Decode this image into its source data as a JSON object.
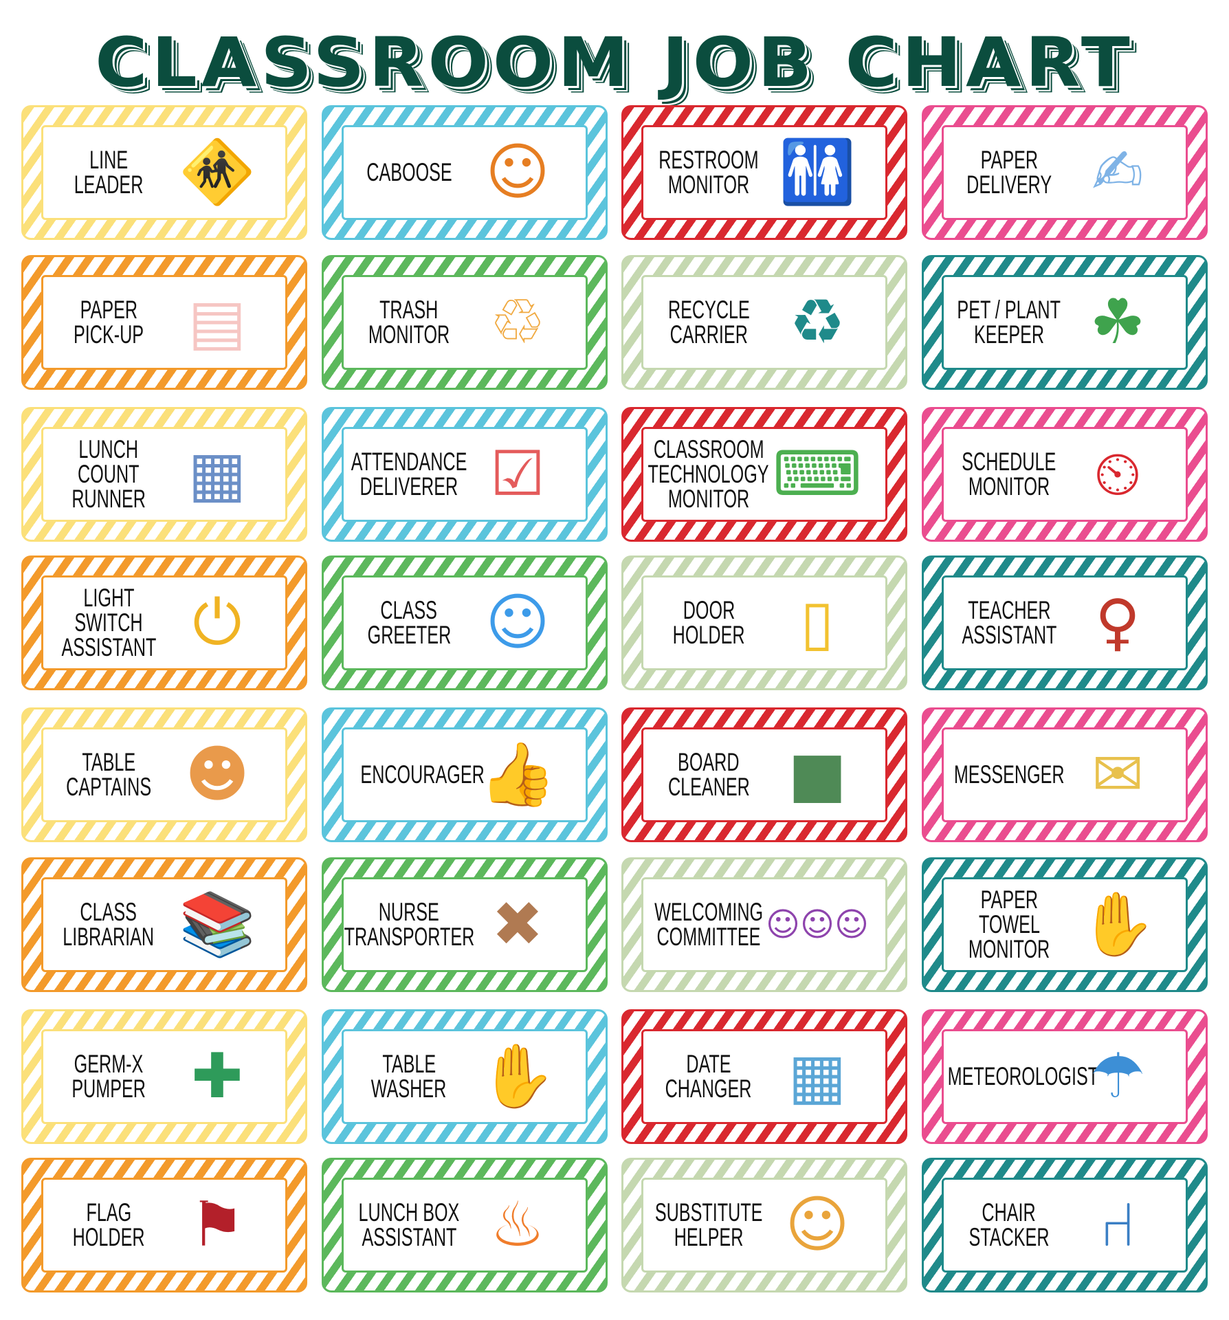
{
  "title": "CLASSROOM JOB CHART",
  "colors": {
    "title": "#0b4d3e",
    "yellow": "#fbe07a",
    "orange": "#f39a2b",
    "blue": "#5bc4dc",
    "green": "#5cb85c",
    "red": "#d9282f",
    "sage": "#c5d8b0",
    "pink": "#ea4d8f",
    "teal": "#1f8a8a"
  },
  "jobs": [
    {
      "lines": [
        "LINE",
        "LEADER"
      ],
      "color": "yellow",
      "icon": "children-line-icon",
      "glyph": "🚸",
      "tint": "#c77dba"
    },
    {
      "lines": [
        "CABOOSE"
      ],
      "color": "blue",
      "icon": "teacher-children-icon",
      "glyph": "☺",
      "tint": "#e67e22"
    },
    {
      "lines": [
        "RESTROOM",
        "MONITOR"
      ],
      "color": "red",
      "icon": "restroom-icon",
      "glyph": "🚻",
      "tint": "#0b4d3e"
    },
    {
      "lines": [
        "PAPER",
        "DELIVERY"
      ],
      "color": "pink",
      "icon": "paper-icon",
      "glyph": "✍",
      "tint": "#7fb3e6"
    },
    {
      "lines": [
        "PAPER",
        "PICK-UP"
      ],
      "color": "orange",
      "icon": "papers-icon",
      "glyph": "▤",
      "tint": "#f6c6c3"
    },
    {
      "lines": [
        "TRASH",
        "MONITOR"
      ],
      "color": "green",
      "icon": "trash-can-icon",
      "glyph": "♲",
      "tint": "#f0a940"
    },
    {
      "lines": [
        "RECYCLE",
        "CARRIER"
      ],
      "color": "sage",
      "icon": "recycle-bins-icon",
      "glyph": "♻",
      "tint": "#1f8a8a"
    },
    {
      "lines": [
        "PET / PLANT",
        "KEEPER"
      ],
      "color": "teal",
      "icon": "plant-icon",
      "glyph": "☘",
      "tint": "#3fa34d"
    },
    {
      "lines": [
        "LUNCH",
        "COUNT",
        "RUNNER"
      ],
      "color": "yellow",
      "icon": "lunch-tray-icon",
      "glyph": "▦",
      "tint": "#6b8fc7"
    },
    {
      "lines": [
        "ATTENDANCE",
        "DELIVERER"
      ],
      "color": "blue",
      "icon": "checklist-icon",
      "glyph": "☑",
      "tint": "#e45b5b"
    },
    {
      "lines": [
        "CLASSROOM",
        "TECHNOLOGY",
        "MONITOR"
      ],
      "color": "red",
      "icon": "laptop-icon",
      "glyph": "⌨",
      "tint": "#4caf50"
    },
    {
      "lines": [
        "SCHEDULE",
        "MONITOR"
      ],
      "color": "pink",
      "icon": "clock-icon",
      "glyph": "⏲",
      "tint": "#d9282f"
    },
    {
      "lines": [
        "LIGHT",
        "SWITCH",
        "ASSISTANT"
      ],
      "color": "orange",
      "icon": "light-switch-icon",
      "glyph": "⏻",
      "tint": "#f0b323"
    },
    {
      "lines": [
        "CLASS",
        "GREETER"
      ],
      "color": "green",
      "icon": "children-waving-icon",
      "glyph": "☺",
      "tint": "#3d9be9"
    },
    {
      "lines": [
        "DOOR",
        "HOLDER"
      ],
      "color": "sage",
      "icon": "door-icon",
      "glyph": "▯",
      "tint": "#f2c230"
    },
    {
      "lines": [
        "TEACHER",
        "ASSISTANT"
      ],
      "color": "teal",
      "icon": "teacher-icon",
      "glyph": "♀",
      "tint": "#c0392b"
    },
    {
      "lines": [
        "TABLE",
        "CAPTAINS"
      ],
      "color": "yellow",
      "icon": "children-table-icon",
      "glyph": "☻",
      "tint": "#e99a4b"
    },
    {
      "lines": [
        "ENCOURAGER"
      ],
      "color": "blue",
      "icon": "thumbs-up-icon",
      "glyph": "👍",
      "tint": "#f5c842"
    },
    {
      "lines": [
        "BOARD",
        "CLEANER"
      ],
      "color": "red",
      "icon": "chalkboard-icon",
      "glyph": "■",
      "tint": "#4f8a56"
    },
    {
      "lines": [
        "MESSENGER"
      ],
      "color": "pink",
      "icon": "envelope-icon",
      "glyph": "✉",
      "tint": "#e8c14d"
    },
    {
      "lines": [
        "CLASS",
        "LIBRARIAN"
      ],
      "color": "orange",
      "icon": "books-icon",
      "glyph": "📚",
      "tint": "#3fb0c9"
    },
    {
      "lines": [
        "NURSE",
        "TRANSPORTER"
      ],
      "color": "green",
      "icon": "bandage-icon",
      "glyph": "✖",
      "tint": "#b07a52"
    },
    {
      "lines": [
        "WELCOMING",
        "COMMITTEE"
      ],
      "color": "sage",
      "icon": "welcome-children-icon",
      "glyph": "☺☺☺",
      "tint": "#8e44ad"
    },
    {
      "lines": [
        "PAPER",
        "TOWEL",
        "MONITOR"
      ],
      "color": "teal",
      "icon": "hands-washing-icon",
      "glyph": "✋",
      "tint": "#f3b48c"
    },
    {
      "lines": [
        "GERM-X",
        "PUMPER"
      ],
      "color": "yellow",
      "icon": "sanitizer-icon",
      "glyph": "✚",
      "tint": "#2e9b5a"
    },
    {
      "lines": [
        "TABLE",
        "WASHER"
      ],
      "color": "blue",
      "icon": "sponge-icon",
      "glyph": "✋",
      "tint": "#6ccbd6"
    },
    {
      "lines": [
        "DATE",
        "CHANGER"
      ],
      "color": "red",
      "icon": "calendar-icon",
      "glyph": "▦",
      "tint": "#5ba6d6"
    },
    {
      "lines": [
        "METEOROLOGIST"
      ],
      "color": "pink",
      "icon": "weather-icon",
      "glyph": "☂",
      "tint": "#3d8fd6"
    },
    {
      "lines": [
        "FLAG",
        "HOLDER"
      ],
      "color": "orange",
      "icon": "flag-icon",
      "glyph": "⚑",
      "tint": "#b3202a"
    },
    {
      "lines": [
        "LUNCH BOX",
        "ASSISTANT"
      ],
      "color": "green",
      "icon": "snack-bag-icon",
      "glyph": "♨",
      "tint": "#f07d2b"
    },
    {
      "lines": [
        "SUBSTITUTE",
        "HELPER"
      ],
      "color": "sage",
      "icon": "student-icon",
      "glyph": "☺",
      "tint": "#e9a43b"
    },
    {
      "lines": [
        "CHAIR",
        "STACKER"
      ],
      "color": "teal",
      "icon": "chair-icon",
      "glyph": "⑁",
      "tint": "#3b7fc4"
    }
  ]
}
